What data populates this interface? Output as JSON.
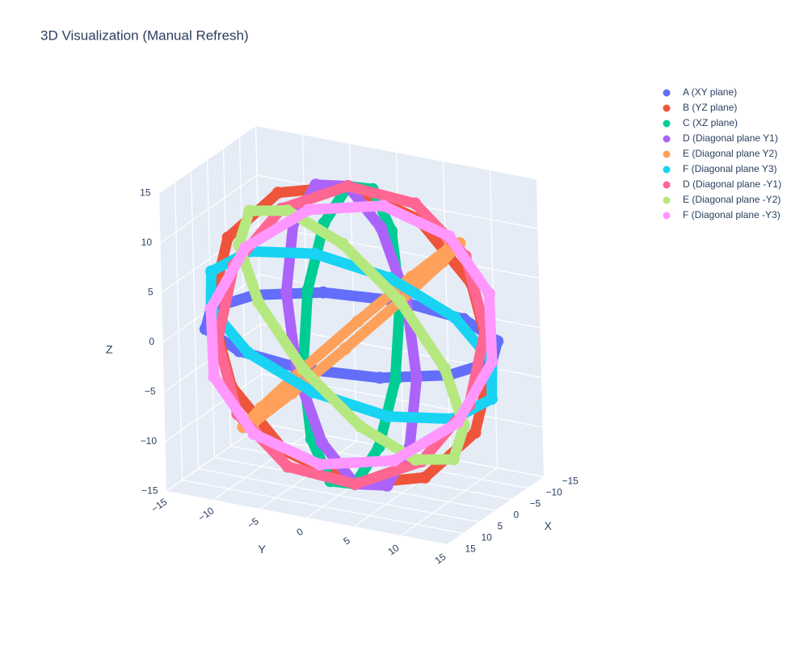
{
  "chart_data": {
    "type": "scatter3d",
    "title": "3D Visualization (Manual Refresh)",
    "xaxis_title": "X",
    "yaxis_title": "Y",
    "zaxis_title": "Z",
    "xlim": [
      -15,
      15
    ],
    "ylim": [
      -15,
      15
    ],
    "zlim": [
      -15,
      15
    ],
    "xticks": [
      {
        "value": -15,
        "label": "−15"
      },
      {
        "value": -10,
        "label": "−10"
      },
      {
        "value": -5,
        "label": "−5"
      },
      0,
      5,
      10,
      15
    ],
    "yticks": [
      {
        "value": -15,
        "label": "−15"
      },
      {
        "value": -10,
        "label": "−10"
      },
      {
        "value": -5,
        "label": "−5"
      },
      0,
      5,
      10,
      15
    ],
    "zticks": [
      {
        "value": -15,
        "label": "−15"
      },
      {
        "value": -10,
        "label": "−10"
      },
      {
        "value": -5,
        "label": "−5"
      },
      0,
      5,
      10,
      15
    ],
    "series": [
      {
        "name": "A (XY plane)",
        "color": "#636efa",
        "x": [
          15,
          12.99,
          7.5,
          0,
          -7.5,
          -12.99,
          -15,
          -12.99,
          -7.5,
          0,
          7.5,
          12.99
        ],
        "y": [
          0,
          7.5,
          12.99,
          15,
          12.99,
          7.5,
          0,
          -7.5,
          -12.99,
          -15,
          -12.99,
          -7.5
        ],
        "z": [
          0,
          0,
          0,
          0,
          0,
          0,
          0,
          0,
          0,
          0,
          0,
          0
        ]
      },
      {
        "name": "B (YZ plane)",
        "color": "#ef553b",
        "x": [
          0,
          0,
          0,
          0,
          0,
          0,
          0,
          0,
          0,
          0,
          0,
          0
        ],
        "y": [
          15,
          12.99,
          7.5,
          0,
          -7.5,
          -12.99,
          -15,
          -12.99,
          -7.5,
          0,
          7.5,
          12.99
        ],
        "z": [
          0,
          7.5,
          12.99,
          15,
          12.99,
          7.5,
          0,
          -7.5,
          -12.99,
          -15,
          -12.99,
          -7.5
        ]
      },
      {
        "name": "C (XZ plane)",
        "color": "#00cc96",
        "x": [
          15,
          12.99,
          7.5,
          0,
          -7.5,
          -12.99,
          -15,
          -12.99,
          -7.5,
          0,
          7.5,
          12.99
        ],
        "y": [
          0,
          0,
          0,
          0,
          0,
          0,
          0,
          0,
          0,
          0,
          0,
          0
        ],
        "z": [
          0,
          7.5,
          12.99,
          15,
          12.99,
          7.5,
          0,
          -7.5,
          -12.99,
          -15,
          -12.99,
          -7.5
        ]
      },
      {
        "name": "D (Diagonal plane Y1)",
        "color": "#ab63fa",
        "x": [
          10.61,
          9.19,
          5.3,
          0,
          -5.3,
          -9.19,
          -10.61,
          -9.19,
          -5.3,
          0,
          5.3,
          9.19
        ],
        "y": [
          10.61,
          9.19,
          5.3,
          0,
          -5.3,
          -9.19,
          -10.61,
          -9.19,
          -5.3,
          0,
          5.3,
          9.19
        ],
        "z": [
          0,
          7.5,
          12.99,
          15,
          12.99,
          7.5,
          0,
          -7.5,
          -12.99,
          -15,
          -12.99,
          -7.5
        ]
      },
      {
        "name": "E (Diagonal plane Y2)",
        "color": "#ffa15a",
        "x": [
          15,
          12.99,
          7.5,
          0,
          -7.5,
          -12.99,
          -15,
          -12.99,
          -7.5,
          0,
          7.5,
          12.99
        ],
        "y": [
          0,
          5.3,
          9.19,
          10.61,
          9.19,
          5.3,
          0,
          -5.3,
          -9.19,
          -10.61,
          -9.19,
          -5.3
        ],
        "z": [
          0,
          5.3,
          9.19,
          10.61,
          9.19,
          5.3,
          0,
          -5.3,
          -9.19,
          -10.61,
          -9.19,
          -5.3
        ]
      },
      {
        "name": "F (Diagonal plane Y3)",
        "color": "#19d3f3",
        "x": [
          0,
          5.3,
          9.19,
          10.61,
          9.19,
          5.3,
          0,
          -5.3,
          -9.19,
          -10.61,
          -9.19,
          -5.3
        ],
        "y": [
          15,
          12.99,
          7.5,
          0,
          -7.5,
          -12.99,
          -15,
          -12.99,
          -7.5,
          0,
          7.5,
          12.99
        ],
        "z": [
          0,
          5.3,
          9.19,
          10.61,
          9.19,
          5.3,
          0,
          -5.3,
          -9.19,
          -10.61,
          -9.19,
          -5.3
        ]
      },
      {
        "name": "D (Diagonal plane -Y1)",
        "color": "#ff6692",
        "x": [
          10.61,
          9.19,
          5.3,
          0,
          -5.3,
          -9.19,
          -10.61,
          -9.19,
          -5.3,
          0,
          5.3,
          9.19
        ],
        "y": [
          -10.61,
          -9.19,
          -5.3,
          0,
          5.3,
          9.19,
          10.61,
          9.19,
          5.3,
          0,
          -5.3,
          -9.19
        ],
        "z": [
          0,
          7.5,
          12.99,
          15,
          12.99,
          7.5,
          0,
          -7.5,
          -12.99,
          -15,
          -12.99,
          -7.5
        ]
      },
      {
        "name": "E (Diagonal plane -Y2)",
        "color": "#b6e880",
        "x": [
          15,
          12.99,
          7.5,
          0,
          -7.5,
          -12.99,
          -15,
          -12.99,
          -7.5,
          0,
          7.5,
          12.99
        ],
        "y": [
          0,
          5.3,
          9.19,
          10.61,
          9.19,
          5.3,
          0,
          -5.3,
          -9.19,
          -10.61,
          -9.19,
          -5.3
        ],
        "z": [
          0,
          -5.3,
          -9.19,
          -10.61,
          -9.19,
          -5.3,
          0,
          5.3,
          9.19,
          10.61,
          9.19,
          5.3
        ]
      },
      {
        "name": "F (Diagonal plane -Y3)",
        "color": "#ff97ff",
        "x": [
          0,
          -5.3,
          -9.19,
          -10.61,
          -9.19,
          -5.3,
          0,
          5.3,
          9.19,
          10.61,
          9.19,
          5.3
        ],
        "y": [
          15,
          12.99,
          7.5,
          0,
          -7.5,
          -12.99,
          -15,
          -12.99,
          -7.5,
          0,
          7.5,
          12.99
        ],
        "z": [
          0,
          5.3,
          9.19,
          10.61,
          9.19,
          5.3,
          0,
          -5.3,
          -9.19,
          -10.61,
          -9.19,
          -5.3
        ]
      }
    ]
  }
}
